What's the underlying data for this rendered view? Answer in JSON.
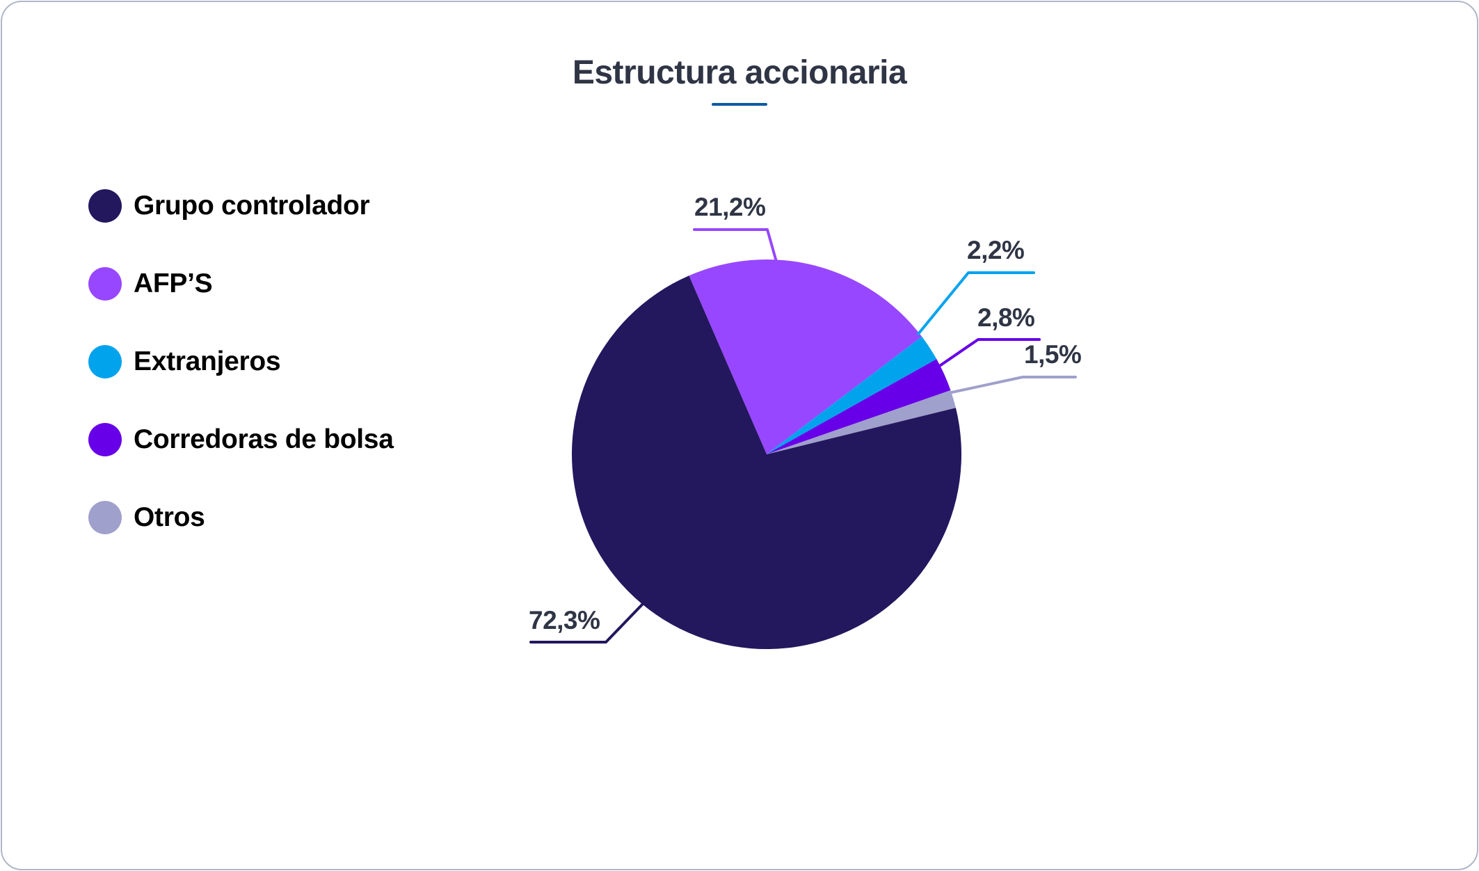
{
  "title": "Estructura accionaria",
  "colors": {
    "title": "#2f3545",
    "underline": "#0b5ba5",
    "border": "#aeb6c8",
    "label_text": "#2f3545"
  },
  "legend": {
    "items": [
      {
        "label": "Grupo controlador",
        "color": "#23175e"
      },
      {
        "label": "AFP’S",
        "color": "#9747ff"
      },
      {
        "label": "Extranjeros",
        "color": "#02a3ed"
      },
      {
        "label": "Corredoras de bolsa",
        "color": "#6700e8"
      },
      {
        "label": "Otros",
        "color": "#a0a0cc"
      }
    ]
  },
  "labels": {
    "grupo": "72,3%",
    "afps": "21,2%",
    "extranjeros": "2,2%",
    "corredoras": "2,8%",
    "otros": "1,5%"
  },
  "chart_data": {
    "type": "pie",
    "title": "Estructura accionaria",
    "categories": [
      "Grupo controlador",
      "AFP’S",
      "Extranjeros",
      "Corredoras de bolsa",
      "Otros"
    ],
    "values": [
      72.3,
      21.2,
      2.2,
      2.8,
      1.5
    ],
    "value_labels": [
      "72,3%",
      "21,2%",
      "2,2%",
      "2,8%",
      "1,5%"
    ],
    "colors": [
      "#23175e",
      "#9747ff",
      "#02a3ed",
      "#6700e8",
      "#a0a0cc"
    ],
    "unit": "%",
    "legend_position": "left"
  }
}
